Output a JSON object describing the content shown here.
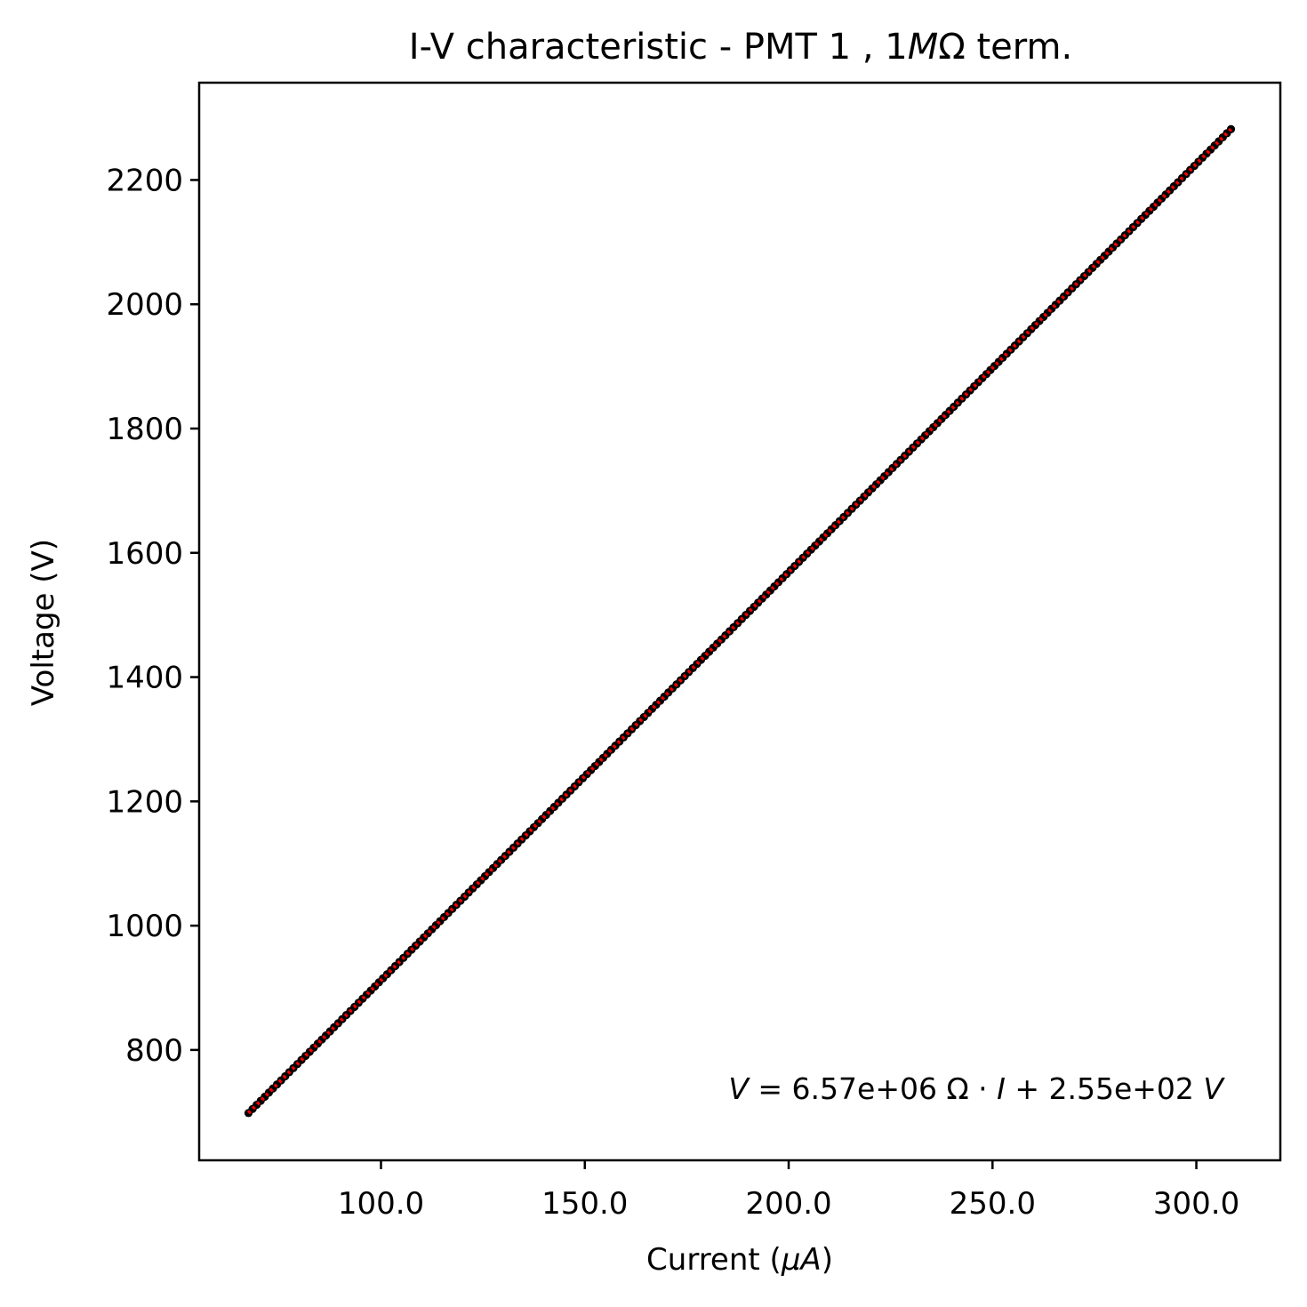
{
  "chart_data": {
    "type": "scatter",
    "title": {
      "prefix": "I-V characteristic - PMT 1 ,  1",
      "italic": "M",
      "suffix": "Ω term."
    },
    "xlabel": {
      "prefix": "Current (",
      "italic": "μA",
      "suffix": ")"
    },
    "ylabel": "Voltage (V)",
    "xlim": [
      55.4,
      320.6
    ],
    "ylim": [
      622.4,
      2356.6
    ],
    "x_ticks": [
      100,
      150,
      200,
      250,
      300
    ],
    "x_tick_labels": [
      "100.0",
      "150.0",
      "200.0",
      "250.0",
      "300.0"
    ],
    "y_ticks": [
      800,
      1000,
      1200,
      1400,
      1600,
      1800,
      2000,
      2200
    ],
    "y_tick_labels": [
      "800",
      "1000",
      "1200",
      "1400",
      "1600",
      "1800",
      "2000",
      "2200"
    ],
    "grid": false,
    "series": [
      {
        "kind": "points",
        "x_start": 67.5,
        "x_end": 308.5,
        "x_step": 1.0,
        "slope_ohm": 6570000,
        "intercept_v": 255,
        "color": "#000000"
      },
      {
        "kind": "fit-line",
        "slope_ohm": 6570000,
        "intercept_v": 255,
        "x_range": [
          67.5,
          308.5
        ],
        "color": "#ff0000",
        "style": "dotted"
      }
    ],
    "annotation": {
      "v": "V",
      "eq": " = 6.57e+06 Ω · ",
      "i": "I",
      "rest": " + 2.55e+02 ",
      "unit": "V",
      "position": "bottom-right"
    }
  }
}
